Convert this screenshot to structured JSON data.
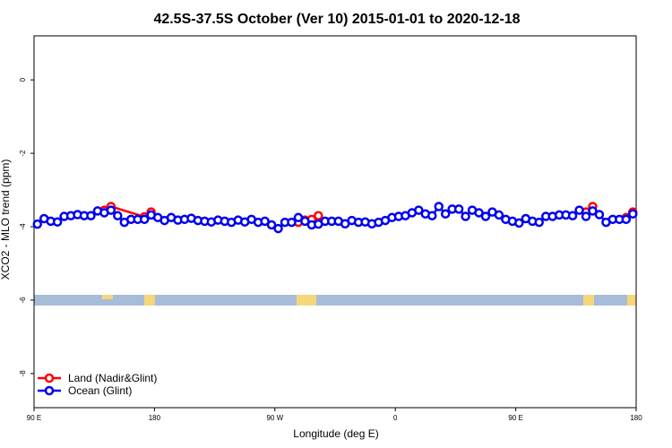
{
  "chart_data": {
    "type": "line",
    "title": "42.5S-37.5S October (Ver 10)   2015-01-01 to 2020-12-18",
    "x_label": "Longitude (deg E)",
    "y_label": "XCO2 - MLO trend (ppm)",
    "xlim": [
      90,
      540
    ],
    "xticks": [
      {
        "value": 90,
        "label": "90 E"
      },
      180,
      {
        "value": 270,
        "label": "90 W"
      },
      {
        "value": 360,
        "label": "0"
      },
      {
        "value": 450,
        "label": "90 E"
      },
      {
        "value": 540,
        "label": "180"
      }
    ],
    "ylim": [
      -8.93,
      1.2
    ],
    "yticks": [
      0,
      -2,
      -4,
      -6,
      -8
    ],
    "legend": "bottom-left",
    "series": [
      {
        "name": "Land (Nadir&Glint)",
        "color": "#ff0000",
        "x": [
          142.5,
          147.5,
          172.5,
          177.5,
          null,
          287.5,
          292.5,
          297.5,
          302.5,
          null,
          502.5,
          507.5,
          null,
          532.5,
          537.5
        ],
        "values": [
          -3.55,
          -3.45,
          -3.73,
          -3.6,
          null,
          -3.88,
          -3.82,
          -3.8,
          -3.7,
          null,
          -3.6,
          -3.45,
          null,
          -3.75,
          -3.6
        ]
      },
      {
        "name": "Ocean (Glint)",
        "color": "#0000ee",
        "x": [
          92.5,
          97.5,
          102.5,
          107.5,
          112.5,
          117.5,
          122.5,
          127.5,
          132.5,
          137.5,
          142.5,
          147.5,
          152.5,
          157.5,
          162.5,
          167.5,
          172.5,
          177.5,
          182.5,
          187.5,
          192.5,
          197.5,
          202.5,
          207.5,
          212.5,
          217.5,
          222.5,
          227.5,
          232.5,
          237.5,
          242.5,
          247.5,
          252.5,
          257.5,
          262.5,
          267.5,
          272.5,
          277.5,
          282.5,
          287.5,
          292.5,
          297.5,
          302.5,
          307.5,
          312.5,
          317.5,
          322.5,
          327.5,
          332.5,
          337.5,
          342.5,
          347.5,
          352.5,
          357.5,
          362.5,
          367.5,
          372.5,
          377.5,
          382.5,
          387.5,
          392.5,
          397.5,
          402.5,
          407.5,
          412.5,
          417.5,
          422.5,
          427.5,
          432.5,
          437.5,
          442.5,
          447.5,
          452.5,
          457.5,
          462.5,
          467.5,
          472.5,
          477.5,
          482.5,
          487.5,
          492.5,
          497.5,
          502.5,
          507.5,
          512.5,
          517.5,
          522.5,
          527.5,
          532.5,
          537.5
        ],
        "values": [
          -3.93,
          -3.78,
          -3.85,
          -3.87,
          -3.72,
          -3.7,
          -3.67,
          -3.7,
          -3.7,
          -3.57,
          -3.62,
          -3.55,
          -3.7,
          -3.88,
          -3.8,
          -3.8,
          -3.8,
          -3.68,
          -3.75,
          -3.83,
          -3.75,
          -3.82,
          -3.8,
          -3.77,
          -3.83,
          -3.85,
          -3.87,
          -3.82,
          -3.85,
          -3.88,
          -3.82,
          -3.87,
          -3.8,
          -3.88,
          -3.85,
          -3.95,
          -4.05,
          -3.88,
          -3.88,
          -3.75,
          -3.85,
          -3.95,
          -3.93,
          -3.85,
          -3.85,
          -3.85,
          -3.92,
          -3.83,
          -3.88,
          -3.87,
          -3.92,
          -3.88,
          -3.83,
          -3.75,
          -3.72,
          -3.7,
          -3.62,
          -3.55,
          -3.65,
          -3.7,
          -3.45,
          -3.65,
          -3.52,
          -3.52,
          -3.72,
          -3.55,
          -3.62,
          -3.72,
          -3.6,
          -3.68,
          -3.8,
          -3.85,
          -3.9,
          -3.78,
          -3.85,
          -3.88,
          -3.72,
          -3.72,
          -3.68,
          -3.68,
          -3.7,
          -3.55,
          -3.72,
          -3.57,
          -3.67,
          -3.88,
          -3.8,
          -3.8,
          -3.8,
          -3.65
        ]
      }
    ]
  }
}
